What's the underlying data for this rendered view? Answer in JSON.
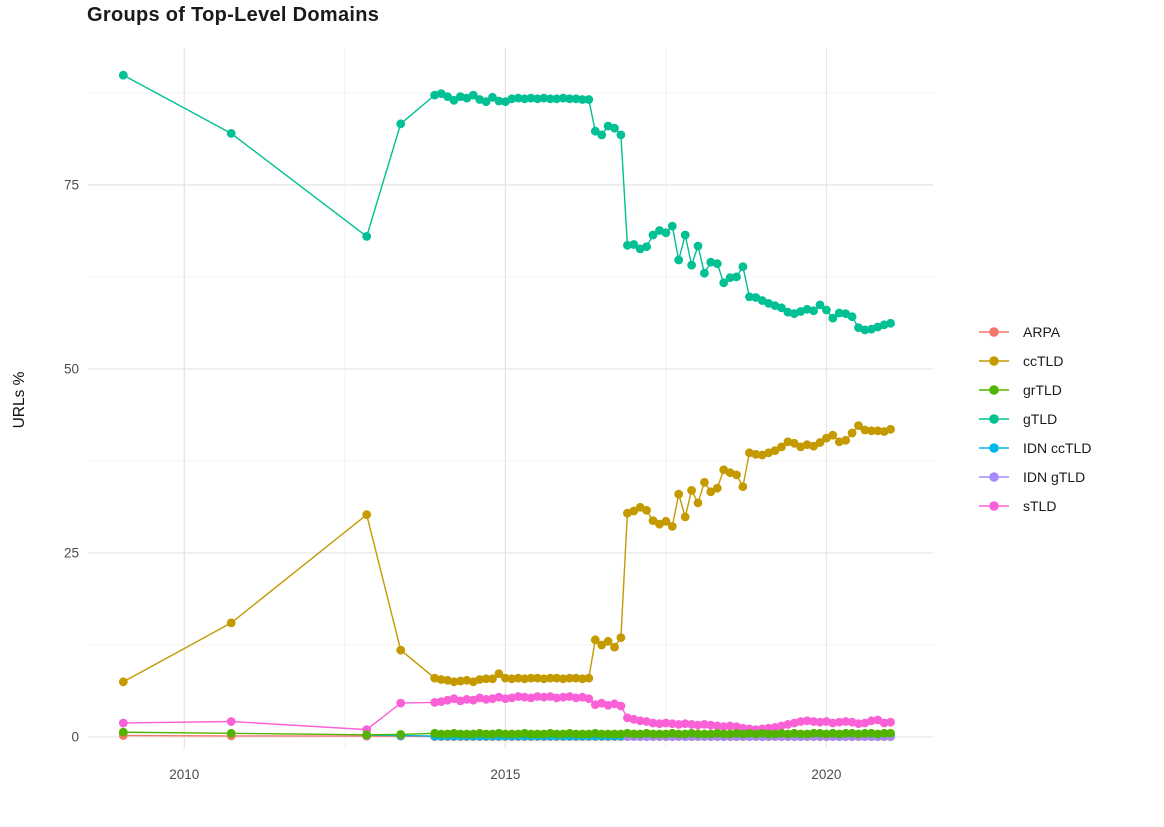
{
  "chart_data": {
    "type": "scatter-line",
    "title": "Groups of Top-Level Domains",
    "xlabel": "",
    "ylabel": "URLs %",
    "grid": true,
    "legend_position": "right",
    "xlim": [
      2008.5,
      2021.66
    ],
    "ylim": [
      -1.5,
      93.6
    ],
    "x_ticks": [
      2010,
      2015,
      2020
    ],
    "x_tick_labels": [
      "2010",
      "2015",
      "2020"
    ],
    "x_minor_ticks": [
      2012.5,
      2017.5
    ],
    "y_ticks": [
      0,
      25,
      50,
      75
    ],
    "y_tick_labels": [
      "0",
      "25",
      "50",
      "75"
    ],
    "y_minor_ticks": [
      12.5,
      37.5,
      62.5,
      87.5
    ],
    "colors": {
      "grid_major": "#e4e4e4",
      "grid_minor": "#f0f0f0",
      "axis_text": "#4d4d4d",
      "title_text": "#1a1a1a"
    },
    "x": [
      2009.05,
      2010.73,
      2012.84,
      2013.37,
      2013.9,
      2014.0,
      2014.1,
      2014.2,
      2014.3,
      2014.4,
      2014.5,
      2014.6,
      2014.7,
      2014.8,
      2014.9,
      2015.0,
      2015.1,
      2015.2,
      2015.3,
      2015.4,
      2015.5,
      2015.6,
      2015.7,
      2015.8,
      2015.9,
      2016.0,
      2016.1,
      2016.2,
      2016.3,
      2016.4,
      2016.5,
      2016.6,
      2016.7,
      2016.8,
      2016.9,
      2017.0,
      2017.1,
      2017.2,
      2017.3,
      2017.4,
      2017.5,
      2017.6,
      2017.7,
      2017.8,
      2017.9,
      2018.0,
      2018.1,
      2018.2,
      2018.3,
      2018.4,
      2018.5,
      2018.6,
      2018.7,
      2018.8,
      2018.9,
      2019.0,
      2019.1,
      2019.2,
      2019.3,
      2019.4,
      2019.5,
      2019.6,
      2019.7,
      2019.8,
      2019.9,
      2020.0,
      2020.1,
      2020.2,
      2020.3,
      2020.4,
      2020.5,
      2020.6,
      2020.7,
      2020.8,
      2020.9,
      2021.0
    ],
    "series": [
      {
        "name": "ARPA",
        "color": "#F8766D",
        "values": [
          0.2,
          0.15,
          0.12,
          0.1,
          0.05,
          0.05,
          0.05,
          0.05,
          0.05,
          0.05,
          0.05,
          0.05,
          0.05,
          0.05,
          0.05,
          0.05,
          0.05,
          0.05,
          0.05,
          0.05,
          0.05,
          0.05,
          0.05,
          0.05,
          0.05,
          0.05,
          0.05,
          0.05,
          0.05,
          0.05,
          0.05,
          0.05,
          0.05,
          0.05,
          0.05,
          0.05,
          0.05,
          0.05,
          0.05,
          0.05,
          0.05,
          0.05,
          0.05,
          0.05,
          0.05,
          0.05,
          0.05,
          0.05,
          0.05,
          0.05,
          0.05,
          0.05,
          0.05,
          0.05,
          0.05,
          0.05,
          0.05,
          0.05,
          0.05,
          0.05,
          0.05,
          0.05,
          0.05,
          0.05,
          0.05,
          0.05,
          0.05,
          0.05,
          0.05,
          0.05,
          0.05,
          0.05,
          0.05,
          0.05,
          0.05,
          0.05
        ]
      },
      {
        "name": "ccTLD",
        "color": "#C49A00",
        "values": [
          7.5,
          15.5,
          30.2,
          11.8,
          8.0,
          7.8,
          7.7,
          7.5,
          7.6,
          7.7,
          7.5,
          7.8,
          7.9,
          7.9,
          8.6,
          8.0,
          7.9,
          8.0,
          7.9,
          8.0,
          8.0,
          7.9,
          8.0,
          8.0,
          7.9,
          8.0,
          8.0,
          7.9,
          8.0,
          13.2,
          12.5,
          13.0,
          12.2,
          13.5,
          30.4,
          30.7,
          31.2,
          30.8,
          29.4,
          28.9,
          29.3,
          28.6,
          33.0,
          29.9,
          33.5,
          31.8,
          34.6,
          33.3,
          33.8,
          36.3,
          35.9,
          35.6,
          34.0,
          38.6,
          38.4,
          38.3,
          38.6,
          38.9,
          39.4,
          40.1,
          39.9,
          39.4,
          39.7,
          39.5,
          40.0,
          40.6,
          41.0,
          40.1,
          40.3,
          41.3,
          42.3,
          41.7,
          41.6,
          41.6,
          41.5,
          41.8
        ]
      },
      {
        "name": "grTLD",
        "color": "#53B400",
        "values": [
          0.65,
          0.5,
          0.3,
          0.35,
          0.5,
          0.4,
          0.4,
          0.5,
          0.4,
          0.4,
          0.4,
          0.5,
          0.4,
          0.4,
          0.5,
          0.4,
          0.4,
          0.4,
          0.5,
          0.4,
          0.4,
          0.4,
          0.5,
          0.4,
          0.4,
          0.5,
          0.4,
          0.4,
          0.4,
          0.5,
          0.4,
          0.4,
          0.4,
          0.4,
          0.5,
          0.4,
          0.4,
          0.5,
          0.4,
          0.4,
          0.4,
          0.5,
          0.4,
          0.4,
          0.5,
          0.4,
          0.4,
          0.4,
          0.5,
          0.4,
          0.4,
          0.5,
          0.4,
          0.5,
          0.4,
          0.5,
          0.4,
          0.4,
          0.5,
          0.4,
          0.5,
          0.4,
          0.4,
          0.5,
          0.5,
          0.4,
          0.5,
          0.4,
          0.5,
          0.5,
          0.4,
          0.5,
          0.5,
          0.4,
          0.5,
          0.5
        ]
      },
      {
        "name": "gTLD",
        "color": "#00C094",
        "values": [
          89.9,
          82.0,
          68.0,
          83.3,
          87.2,
          87.4,
          87.0,
          86.5,
          87.0,
          86.8,
          87.2,
          86.6,
          86.3,
          86.9,
          86.4,
          86.3,
          86.7,
          86.8,
          86.7,
          86.8,
          86.7,
          86.8,
          86.7,
          86.7,
          86.8,
          86.7,
          86.7,
          86.6,
          86.6,
          82.3,
          81.8,
          83.0,
          82.7,
          81.8,
          66.8,
          66.9,
          66.3,
          66.6,
          68.2,
          68.8,
          68.5,
          69.4,
          64.8,
          68.2,
          64.1,
          66.7,
          63.0,
          64.5,
          64.3,
          61.7,
          62.4,
          62.5,
          63.9,
          59.8,
          59.7,
          59.3,
          58.9,
          58.6,
          58.3,
          57.7,
          57.5,
          57.8,
          58.1,
          57.9,
          58.7,
          58.0,
          56.9,
          57.6,
          57.5,
          57.1,
          55.6,
          55.3,
          55.4,
          55.7,
          56.0,
          56.2
        ]
      },
      {
        "name": "IDN ccTLD",
        "color": "#00B6EB",
        "values": [
          null,
          null,
          0.25,
          0.2,
          0.12,
          0.12,
          0.12,
          0.12,
          0.12,
          0.12,
          0.12,
          0.12,
          0.12,
          0.12,
          0.12,
          0.12,
          0.12,
          0.12,
          0.12,
          0.12,
          0.12,
          0.12,
          0.12,
          0.12,
          0.12,
          0.12,
          0.12,
          0.12,
          0.12,
          0.12,
          0.12,
          0.12,
          0.12,
          0.12,
          0.12,
          0.12,
          0.12,
          0.12,
          0.12,
          0.12,
          0.12,
          0.12,
          0.12,
          0.12,
          0.12,
          0.12,
          0.12,
          0.12,
          0.12,
          0.12,
          0.12,
          0.12,
          0.12,
          0.12,
          0.12,
          0.12,
          0.12,
          0.12,
          0.12,
          0.12,
          0.12,
          0.12,
          0.12,
          0.12,
          0.12,
          0.12,
          0.12,
          0.12,
          0.12,
          0.12,
          0.12,
          0.12,
          0.12,
          0.12,
          0.12,
          0.12
        ]
      },
      {
        "name": "IDN gTLD",
        "color": "#A58AFF",
        "values": [
          null,
          null,
          null,
          null,
          null,
          null,
          null,
          null,
          null,
          null,
          null,
          null,
          null,
          null,
          null,
          null,
          null,
          null,
          null,
          null,
          null,
          null,
          null,
          null,
          null,
          null,
          null,
          null,
          null,
          null,
          null,
          null,
          null,
          null,
          0.1,
          0.06,
          0.12,
          0.05,
          0.1,
          0.07,
          0.12,
          0.06,
          0.1,
          0.05,
          0.12,
          0.07,
          0.1,
          0.06,
          0.11,
          0.05,
          0.1,
          0.07,
          0.12,
          0.06,
          0.1,
          0.05,
          0.11,
          0.07,
          0.1,
          0.06,
          0.12,
          0.05,
          0.1,
          0.07,
          0.11,
          0.06,
          0.1,
          0.05,
          0.12,
          0.07,
          0.1,
          0.06,
          0.11,
          0.05,
          0.1,
          0.07
        ]
      },
      {
        "name": "sTLD",
        "color": "#FB61D7",
        "values": [
          1.9,
          2.1,
          1.0,
          4.6,
          4.7,
          4.8,
          5.0,
          5.2,
          4.9,
          5.1,
          5.0,
          5.3,
          5.1,
          5.2,
          5.4,
          5.2,
          5.3,
          5.5,
          5.4,
          5.3,
          5.5,
          5.4,
          5.5,
          5.3,
          5.4,
          5.5,
          5.3,
          5.4,
          5.2,
          4.4,
          4.6,
          4.3,
          4.5,
          4.2,
          2.6,
          2.4,
          2.2,
          2.1,
          1.9,
          1.8,
          1.9,
          1.8,
          1.7,
          1.8,
          1.7,
          1.6,
          1.7,
          1.6,
          1.5,
          1.4,
          1.5,
          1.4,
          1.2,
          1.1,
          1.0,
          1.1,
          1.2,
          1.3,
          1.5,
          1.7,
          1.9,
          2.1,
          2.2,
          2.1,
          2.0,
          2.1,
          1.9,
          2.0,
          2.1,
          2.0,
          1.8,
          1.9,
          2.2,
          2.3,
          1.9,
          2.0
        ]
      }
    ],
    "draw_order": [
      "ARPA",
      "IDN ccTLD",
      "IDN gTLD",
      "ccTLD",
      "gTLD",
      "sTLD",
      "grTLD"
    ]
  }
}
